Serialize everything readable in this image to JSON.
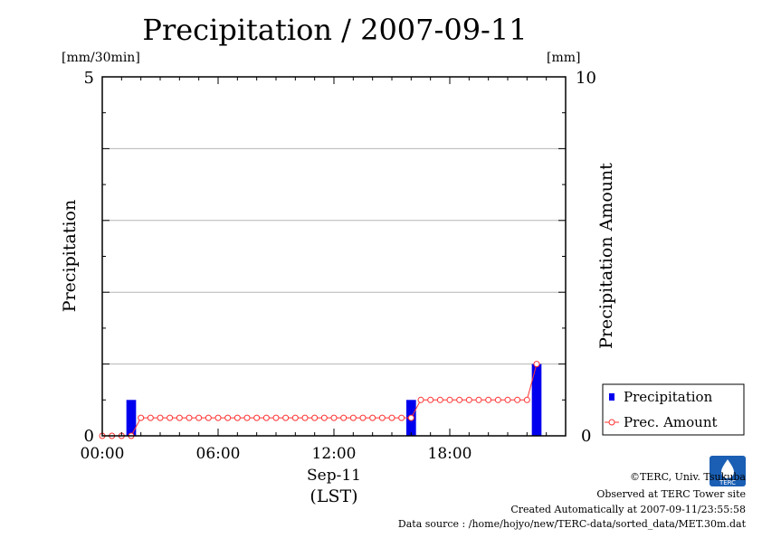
{
  "chart_data": {
    "type": "bar+line",
    "title": "Precipitation / 2007-09-11",
    "left_axis": {
      "label": "Precipitation",
      "unit": "[mm/30min]",
      "range": [
        0,
        5
      ],
      "ticks": [
        "0",
        "5"
      ]
    },
    "right_axis": {
      "label": "Precipitation Amount",
      "unit": "[mm]",
      "range": [
        0,
        10
      ],
      "ticks": [
        "0",
        "10"
      ]
    },
    "x_axis": {
      "label": "Sep-11",
      "sublabel": "(LST)",
      "range_hours": [
        0,
        24
      ],
      "ticks": [
        "00:00",
        "06:00",
        "12:00",
        "18:00"
      ],
      "tick_hours": [
        0,
        6,
        12,
        18
      ]
    },
    "grid": true,
    "legend_position": "bottom-right",
    "series": [
      {
        "name": "Precipitation",
        "kind": "bar",
        "color": "#0000ee",
        "x": [
          1.5,
          16.0,
          22.5
        ],
        "values": [
          0.5,
          0.5,
          1.0
        ]
      },
      {
        "name": "Prec. Amount",
        "kind": "line-marker",
        "color": "#ff3333",
        "x": [
          0,
          0.5,
          1,
          1.5,
          2,
          2.5,
          3,
          3.5,
          4,
          4.5,
          5,
          5.5,
          6,
          6.5,
          7,
          7.5,
          8,
          8.5,
          9,
          9.5,
          10,
          10.5,
          11,
          11.5,
          12,
          12.5,
          13,
          13.5,
          14,
          14.5,
          15,
          15.5,
          16,
          16.5,
          17,
          17.5,
          18,
          18.5,
          19,
          19.5,
          20,
          20.5,
          21,
          21.5,
          22,
          22.5
        ],
        "values": [
          0,
          0,
          0,
          0,
          0.5,
          0.5,
          0.5,
          0.5,
          0.5,
          0.5,
          0.5,
          0.5,
          0.5,
          0.5,
          0.5,
          0.5,
          0.5,
          0.5,
          0.5,
          0.5,
          0.5,
          0.5,
          0.5,
          0.5,
          0.5,
          0.5,
          0.5,
          0.5,
          0.5,
          0.5,
          0.5,
          0.5,
          0.5,
          1.0,
          1.0,
          1.0,
          1.0,
          1.0,
          1.0,
          1.0,
          1.0,
          1.0,
          1.0,
          1.0,
          1.0,
          2.0
        ]
      }
    ]
  },
  "footer": {
    "copyright": "©TERC, Univ. Tsukuba",
    "observed": "Observed at TERC Tower site",
    "created": "Created Automatically at 2007-09-11/23:55:58",
    "source": "Data source : /home/hojyo/new/TERC-data/sorted_data/MET.30m.dat",
    "logo_text": "TERC"
  }
}
